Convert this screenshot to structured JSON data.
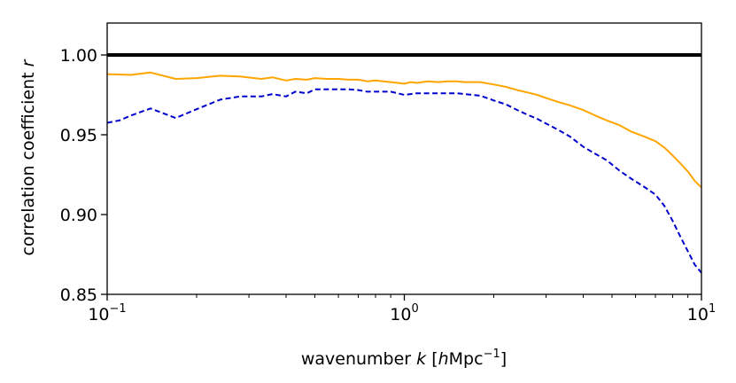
{
  "chart_data": {
    "type": "line",
    "xscale": "log",
    "xlim": [
      0.1,
      10
    ],
    "ylim": [
      0.85,
      1.02
    ],
    "grid": false,
    "legend": "none",
    "xlabel": "wavenumber k [hMpc⁻¹]",
    "xlabel_parts": {
      "prefix": "wavenumber ",
      "k": "k",
      "bracket_open": " [",
      "h": "h",
      "mpc": "Mpc",
      "exponent": "−1",
      "bracket_close": "]"
    },
    "ylabel": "correlation coefficient r",
    "ylabel_parts": {
      "text": "correlation coefficient ",
      "r": "r"
    },
    "xticks": [
      {
        "value": 0.1,
        "base": "10",
        "exp": "−1"
      },
      {
        "value": 1,
        "base": "10",
        "exp": "0"
      },
      {
        "value": 10,
        "base": "10",
        "exp": "1"
      }
    ],
    "yticks": [
      {
        "value": 0.85,
        "label": "0.85"
      },
      {
        "value": 0.9,
        "label": "0.90"
      },
      {
        "value": 0.95,
        "label": "0.95"
      },
      {
        "value": 1.0,
        "label": "1.00"
      }
    ],
    "series": [
      {
        "style": "solid",
        "color": "#000000",
        "width": 4,
        "x": [
          0.1,
          10
        ],
        "y": [
          1.0,
          1.0
        ]
      },
      {
        "style": "solid",
        "color": "#ffa500",
        "width": 2,
        "x": [
          0.1,
          0.12,
          0.14,
          0.17,
          0.2,
          0.24,
          0.28,
          0.33,
          0.36,
          0.4,
          0.43,
          0.47,
          0.5,
          0.55,
          0.6,
          0.65,
          0.7,
          0.75,
          0.8,
          0.85,
          0.9,
          0.95,
          1.0,
          1.05,
          1.1,
          1.2,
          1.3,
          1.4,
          1.5,
          1.6,
          1.8,
          2.0,
          2.2,
          2.4,
          2.6,
          2.8,
          3.0,
          3.3,
          3.6,
          4.0,
          4.4,
          4.8,
          5.3,
          5.8,
          6.4,
          7.0,
          7.5,
          8.0,
          8.5,
          9.0,
          9.5,
          10.0
        ],
        "y": [
          0.988,
          0.9875,
          0.989,
          0.985,
          0.9855,
          0.987,
          0.9865,
          0.985,
          0.986,
          0.984,
          0.985,
          0.9845,
          0.9855,
          0.985,
          0.985,
          0.9845,
          0.9845,
          0.9835,
          0.984,
          0.9835,
          0.983,
          0.9825,
          0.982,
          0.983,
          0.9825,
          0.9835,
          0.983,
          0.9835,
          0.9835,
          0.983,
          0.983,
          0.9815,
          0.98,
          0.978,
          0.9765,
          0.975,
          0.973,
          0.9705,
          0.9685,
          0.9655,
          0.962,
          0.959,
          0.956,
          0.952,
          0.949,
          0.946,
          0.942,
          0.937,
          0.932,
          0.927,
          0.921,
          0.917
        ]
      },
      {
        "style": "dashed",
        "color": "#0000cc",
        "width": 2,
        "x": [
          0.1,
          0.11,
          0.12,
          0.14,
          0.17,
          0.2,
          0.24,
          0.28,
          0.33,
          0.36,
          0.4,
          0.43,
          0.47,
          0.5,
          0.55,
          0.6,
          0.65,
          0.7,
          0.75,
          0.8,
          0.9,
          1.0,
          1.05,
          1.1,
          1.2,
          1.3,
          1.4,
          1.5,
          1.6,
          1.8,
          2.0,
          2.2,
          2.4,
          2.6,
          2.8,
          3.0,
          3.3,
          3.6,
          4.0,
          4.4,
          4.8,
          5.3,
          5.8,
          6.4,
          7.0,
          7.5,
          8.0,
          8.5,
          9.0,
          9.5,
          10.0
        ],
        "y": [
          0.9575,
          0.959,
          0.962,
          0.9665,
          0.9605,
          0.966,
          0.972,
          0.974,
          0.974,
          0.9755,
          0.974,
          0.977,
          0.976,
          0.9785,
          0.9785,
          0.9785,
          0.9785,
          0.978,
          0.977,
          0.977,
          0.977,
          0.975,
          0.9755,
          0.976,
          0.976,
          0.976,
          0.976,
          0.976,
          0.9755,
          0.9745,
          0.9715,
          0.969,
          0.9655,
          0.9625,
          0.96,
          0.957,
          0.953,
          0.949,
          0.9425,
          0.938,
          0.934,
          0.9275,
          0.9225,
          0.9175,
          0.9125,
          0.9055,
          0.896,
          0.886,
          0.877,
          0.8685,
          0.8635
        ]
      }
    ]
  }
}
